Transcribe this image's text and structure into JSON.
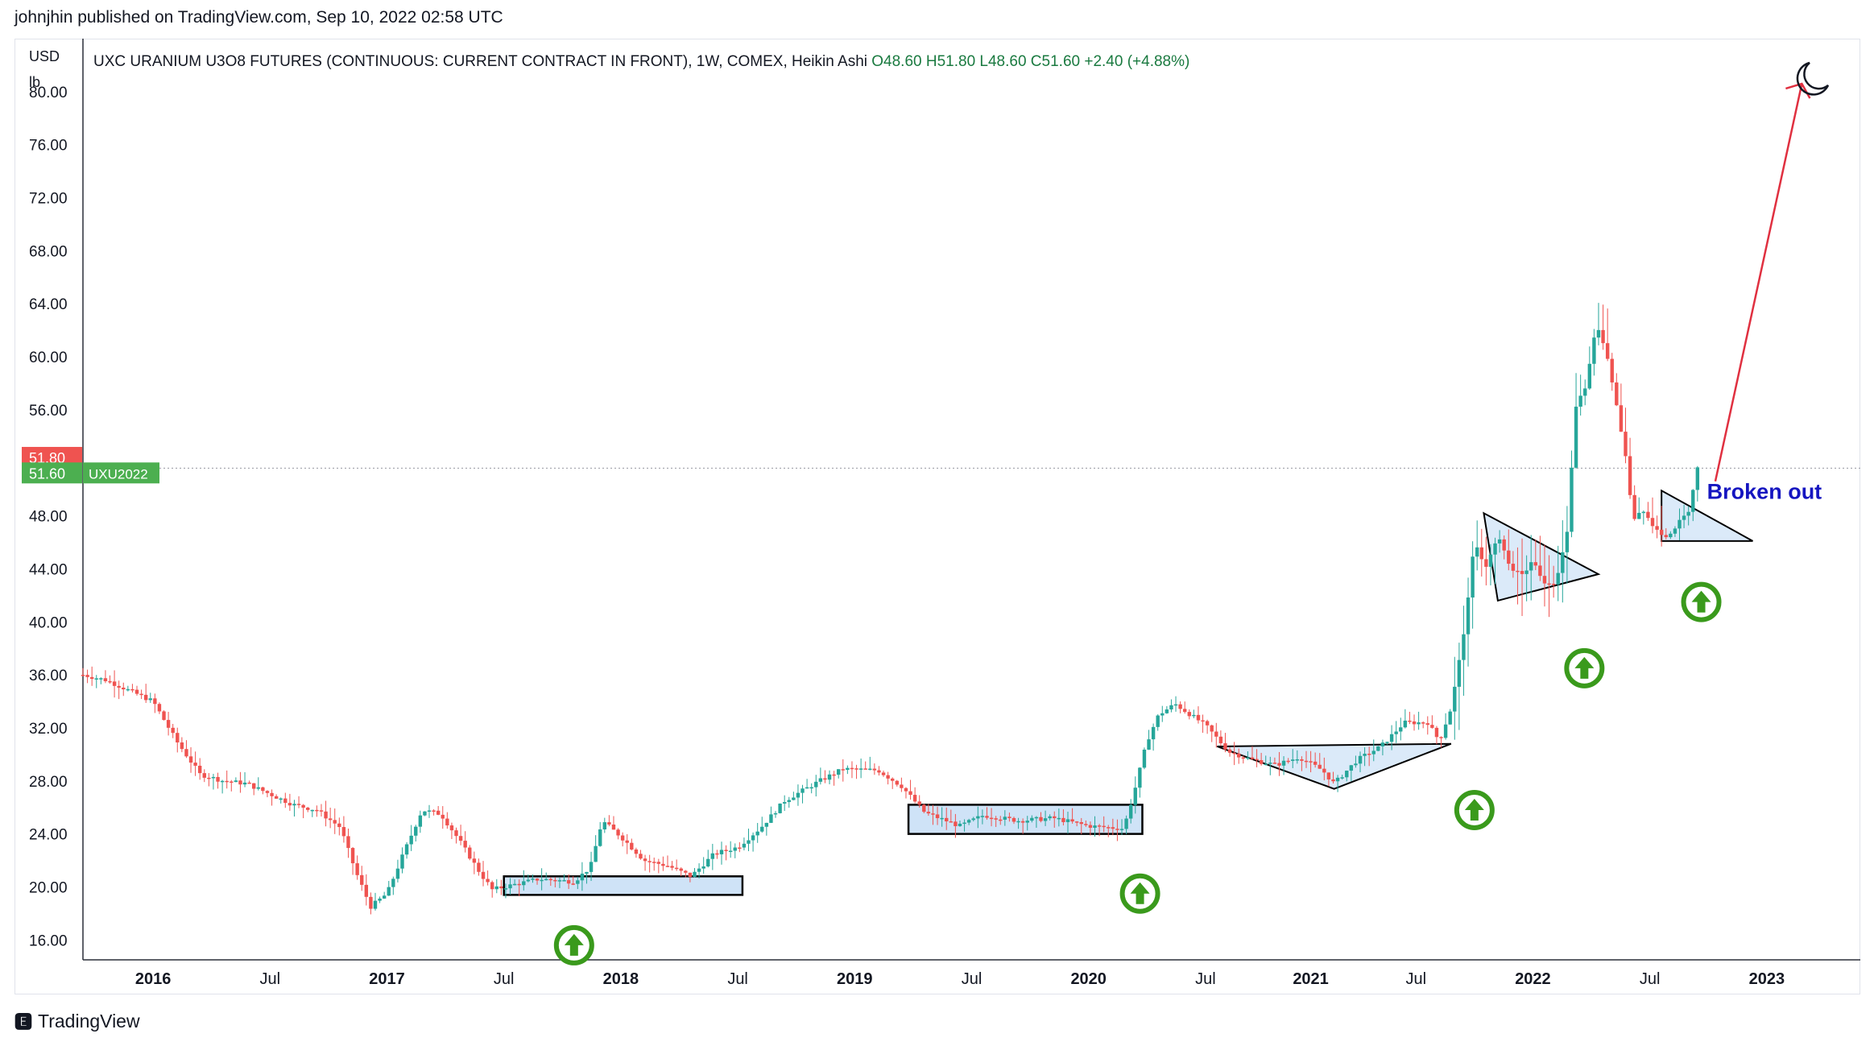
{
  "header": {
    "published_by": "johnjhin published on TradingView.com, Sep 10, 2022 02:58 UTC"
  },
  "footer": {
    "brand": "TradingView"
  },
  "colors": {
    "up": "#26a69a",
    "down": "#ef5350",
    "arrow": "#e03040",
    "badge_green": "#4caf50",
    "badge_red": "#ef5350",
    "pattern_fill": "#cfe3f7",
    "circle_green": "#3a9a1c",
    "annotation_blue": "#1515c0"
  },
  "chart_data": {
    "type": "candlestick",
    "title": "UXC URANIUM U3O8 FUTURES (CONTINUOUS: CURRENT CONTRACT IN FRONT), 1W, COMEX, Heikin Ashi",
    "ohlc_label": {
      "o": "O48.60",
      "h": "H51.80",
      "l": "L48.60",
      "c": "C51.60",
      "chg": "+2.40 (+4.88%)"
    },
    "y_unit_top": "USD",
    "y_unit_bottom": "lb",
    "ylim": [
      14.5,
      84
    ],
    "y_ticks": [
      "80.00",
      "76.00",
      "72.00",
      "68.00",
      "64.00",
      "60.00",
      "56.00",
      "52.00",
      "48.00",
      "44.00",
      "40.00",
      "36.00",
      "32.00",
      "28.00",
      "24.00",
      "20.00",
      "16.00"
    ],
    "x_ticks": [
      {
        "t": 2016.05,
        "label": "2016"
      },
      {
        "t": 2016.55,
        "label": "Jul"
      },
      {
        "t": 2017.05,
        "label": "2017"
      },
      {
        "t": 2017.55,
        "label": "Jul"
      },
      {
        "t": 2018.05,
        "label": "2018"
      },
      {
        "t": 2018.55,
        "label": "Jul"
      },
      {
        "t": 2019.05,
        "label": "2019"
      },
      {
        "t": 2019.55,
        "label": "Jul"
      },
      {
        "t": 2020.05,
        "label": "2020"
      },
      {
        "t": 2020.55,
        "label": "Jul"
      },
      {
        "t": 2021.0,
        "label": "2021"
      },
      {
        "t": 2021.45,
        "label": "Jul"
      },
      {
        "t": 2021.95,
        "label": "2022"
      },
      {
        "t": 2022.45,
        "label": "Jul"
      },
      {
        "t": 2022.95,
        "label": "2023"
      }
    ],
    "xlim": [
      2015.75,
      2023.35
    ],
    "price_series": [
      [
        2015.75,
        36.0
      ],
      [
        2015.85,
        35.6
      ],
      [
        2015.95,
        34.8
      ],
      [
        2016.05,
        34.0
      ],
      [
        2016.15,
        31.0
      ],
      [
        2016.25,
        28.5
      ],
      [
        2016.35,
        28.0
      ],
      [
        2016.45,
        27.8
      ],
      [
        2016.55,
        27.0
      ],
      [
        2016.65,
        26.2
      ],
      [
        2016.75,
        25.8
      ],
      [
        2016.85,
        24.5
      ],
      [
        2016.92,
        21.0
      ],
      [
        2016.98,
        18.5
      ],
      [
        2017.05,
        19.5
      ],
      [
        2017.12,
        22.5
      ],
      [
        2017.2,
        25.8
      ],
      [
        2017.28,
        25.5
      ],
      [
        2017.36,
        23.5
      ],
      [
        2017.45,
        21.0
      ],
      [
        2017.5,
        19.8
      ],
      [
        2017.6,
        20.2
      ],
      [
        2017.7,
        20.6
      ],
      [
        2017.85,
        20.4
      ],
      [
        2017.92,
        21.5
      ],
      [
        2017.97,
        25.0
      ],
      [
        2018.05,
        23.8
      ],
      [
        2018.15,
        22.0
      ],
      [
        2018.25,
        21.6
      ],
      [
        2018.35,
        20.8
      ],
      [
        2018.45,
        22.5
      ],
      [
        2018.55,
        23.0
      ],
      [
        2018.65,
        24.5
      ],
      [
        2018.75,
        26.5
      ],
      [
        2018.9,
        28.0
      ],
      [
        2019.0,
        28.9
      ],
      [
        2019.15,
        28.8
      ],
      [
        2019.25,
        27.6
      ],
      [
        2019.35,
        25.6
      ],
      [
        2019.5,
        24.6
      ],
      [
        2019.6,
        25.4
      ],
      [
        2019.75,
        25.0
      ],
      [
        2019.9,
        25.2
      ],
      [
        2020.05,
        24.6
      ],
      [
        2020.2,
        24.4
      ],
      [
        2020.25,
        27.5
      ],
      [
        2020.3,
        31.0
      ],
      [
        2020.35,
        33.0
      ],
      [
        2020.42,
        33.8
      ],
      [
        2020.55,
        32.2
      ],
      [
        2020.65,
        30.2
      ],
      [
        2020.75,
        29.6
      ],
      [
        2020.85,
        29.2
      ],
      [
        2020.95,
        29.8
      ],
      [
        2021.05,
        28.8
      ],
      [
        2021.1,
        27.8
      ],
      [
        2021.2,
        29.6
      ],
      [
        2021.3,
        30.6
      ],
      [
        2021.4,
        32.4
      ],
      [
        2021.5,
        32.4
      ],
      [
        2021.55,
        31.0
      ],
      [
        2021.6,
        33.5
      ],
      [
        2021.65,
        38.5
      ],
      [
        2021.7,
        46.0
      ],
      [
        2021.75,
        44.0
      ],
      [
        2021.8,
        46.5
      ],
      [
        2021.85,
        44.2
      ],
      [
        2021.9,
        43.5
      ],
      [
        2021.95,
        44.5
      ],
      [
        2022.0,
        43.0
      ],
      [
        2022.05,
        43.0
      ],
      [
        2022.1,
        47.0
      ],
      [
        2022.13,
        56.0
      ],
      [
        2022.18,
        58.0
      ],
      [
        2022.22,
        62.5
      ],
      [
        2022.26,
        60.5
      ],
      [
        2022.3,
        57.0
      ],
      [
        2022.35,
        52.0
      ],
      [
        2022.38,
        47.5
      ],
      [
        2022.42,
        48.5
      ],
      [
        2022.47,
        47.0
      ],
      [
        2022.52,
        46.5
      ],
      [
        2022.55,
        47.0
      ],
      [
        2022.6,
        48.0
      ],
      [
        2022.62,
        48.6
      ],
      [
        2022.65,
        51.6
      ]
    ],
    "last_price_lines": [
      {
        "label": "51.80",
        "value": 51.8,
        "color": "#ef5350"
      },
      {
        "label": "51.60",
        "value": 51.6,
        "color": "#4caf50",
        "ticker": "UXU2022"
      }
    ],
    "boxes": [
      {
        "t0": 2017.55,
        "t1": 2018.57,
        "p0": 19.4,
        "p1": 20.8
      },
      {
        "t0": 2019.28,
        "t1": 2020.28,
        "p0": 24.0,
        "p1": 26.2
      }
    ],
    "triangles": [
      {
        "pts": [
          [
            2020.6,
            30.6
          ],
          [
            2021.1,
            27.4
          ],
          [
            2021.6,
            30.8
          ]
        ]
      },
      {
        "pts": [
          [
            2021.74,
            48.2
          ],
          [
            2021.8,
            41.6
          ],
          [
            2022.23,
            43.6
          ]
        ]
      },
      {
        "pts": [
          [
            2022.5,
            49.9
          ],
          [
            2022.5,
            46.1
          ],
          [
            2022.89,
            46.1
          ]
        ]
      }
    ],
    "up_arrow_circles": [
      2017.85,
      2020.27,
      2021.7,
      2022.17,
      2022.67
    ],
    "up_arrow_circle_prices": [
      15.6,
      19.5,
      25.8,
      36.5,
      41.5
    ],
    "projection_arrow": {
      "from": [
        2022.73,
        50.6
      ],
      "to": [
        2023.1,
        80.6
      ]
    },
    "annotation": {
      "text": "Broken out",
      "t": 2022.94,
      "p": 49.9
    },
    "moon_icon": "moon-icon"
  }
}
